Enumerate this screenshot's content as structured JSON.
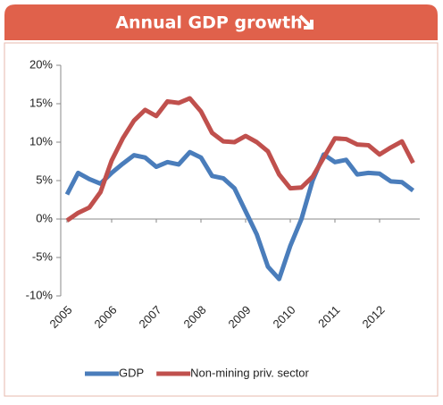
{
  "chart_data": {
    "type": "line",
    "title": "Annual GDP growth",
    "categories": [
      "2005",
      null,
      null,
      null,
      "2006",
      null,
      null,
      null,
      "2007",
      null,
      null,
      null,
      "2008",
      null,
      null,
      null,
      "2009",
      null,
      null,
      null,
      "2010",
      null,
      null,
      null,
      "2011",
      null,
      null,
      null,
      "2012",
      null,
      null,
      null
    ],
    "series": [
      {
        "name": "GDP",
        "color": "#4a7dbb",
        "values": [
          3.2,
          6.0,
          5.2,
          4.6,
          6.0,
          7.2,
          8.3,
          8.0,
          6.8,
          7.4,
          7.1,
          8.7,
          8.0,
          5.6,
          5.3,
          4.0,
          1.0,
          -2.0,
          -6.2,
          -7.8,
          -3.5,
          0.0,
          5.0,
          8.4,
          7.4,
          7.7,
          5.8,
          6.0,
          5.9,
          4.9,
          4.8,
          3.7
        ]
      },
      {
        "name": "Non-mining priv. sector",
        "color": "#c0504d",
        "values": [
          -0.2,
          0.8,
          1.5,
          3.5,
          7.6,
          10.5,
          12.8,
          14.2,
          13.4,
          15.3,
          15.1,
          15.7,
          14.0,
          11.2,
          10.1,
          10.0,
          10.8,
          10.0,
          8.8,
          5.8,
          4.0,
          4.1,
          5.5,
          8.0,
          10.5,
          10.4,
          9.7,
          9.6,
          8.4,
          9.3,
          10.1,
          7.3
        ]
      }
    ],
    "ylim": [
      -10,
      20
    ],
    "yticks": [
      {
        "value": -10,
        "label": "-10%"
      },
      {
        "value": -5,
        "label": "-5%"
      },
      {
        "value": 0,
        "label": "0%"
      },
      {
        "value": 5,
        "label": "5%"
      },
      {
        "value": 10,
        "label": "10%"
      },
      {
        "value": 15,
        "label": "15%"
      },
      {
        "value": 20,
        "label": "20%"
      }
    ],
    "grid": false,
    "legend": "bottom"
  }
}
